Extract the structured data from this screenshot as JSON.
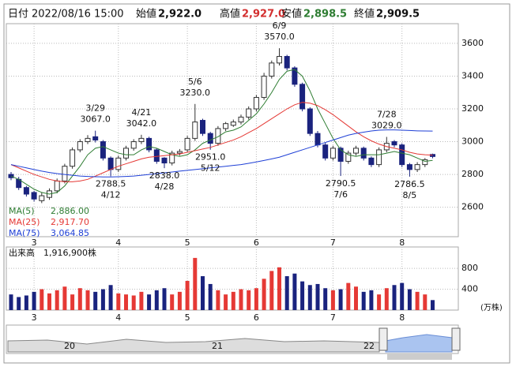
{
  "header": {
    "date_label": "日付",
    "date": "2022/08/16 15:00",
    "open_label": "始値",
    "open": "2,922.0",
    "high_label": "高値",
    "high": "2,927.0",
    "low_label": "安値",
    "low": "2,898.5",
    "close_label": "終値",
    "close": "2,909.5"
  },
  "chart_data": [
    {
      "type": "candlestick",
      "categories": [
        null,
        null,
        null,
        "3",
        null,
        null,
        null,
        null,
        null,
        null,
        null,
        null,
        null,
        null,
        "4",
        null,
        null,
        null,
        null,
        null,
        null,
        null,
        null,
        "5",
        null,
        null,
        null,
        null,
        null,
        null,
        null,
        null,
        "6",
        null,
        null,
        null,
        null,
        null,
        null,
        null,
        null,
        null,
        "7",
        null,
        null,
        null,
        null,
        null,
        null,
        null,
        null,
        "8",
        null,
        null,
        null,
        null
      ],
      "open": [
        2800,
        2770,
        2720,
        2690,
        2640,
        2660,
        2700,
        2760,
        2850,
        2950,
        3000,
        3030,
        3000,
        2900,
        2830,
        2900,
        2960,
        3000,
        3020,
        2950,
        2900,
        2870,
        2930,
        2950,
        3020,
        3130,
        3050,
        2990,
        3080,
        3100,
        3120,
        3150,
        3200,
        3270,
        3400,
        3480,
        3520,
        3450,
        3350,
        3200,
        3050,
        2980,
        2900,
        2960,
        2880,
        2930,
        2960,
        2900,
        2860,
        2950,
        3000,
        2980,
        2860,
        2830,
        2860,
        2922
      ],
      "high": [
        2815,
        2785,
        2730,
        2700,
        2690,
        2715,
        2775,
        2865,
        2965,
        3015,
        3040,
        3067,
        3010,
        2910,
        2915,
        2975,
        3015,
        3042,
        3030,
        2960,
        2905,
        2945,
        2955,
        3035,
        3230,
        3140,
        3060,
        3095,
        3120,
        3135,
        3165,
        3215,
        3285,
        3420,
        3495,
        3570,
        3530,
        3460,
        3360,
        3210,
        3065,
        2995,
        2975,
        2970,
        2945,
        2975,
        2970,
        2910,
        2965,
        3029,
        3010,
        2990,
        2870,
        2875,
        2900,
        2927
      ],
      "low": [
        2765,
        2705,
        2665,
        2635,
        2625,
        2645,
        2685,
        2745,
        2835,
        2935,
        2985,
        2995,
        2885,
        2788.5,
        2815,
        2885,
        2945,
        2985,
        2935,
        2865,
        2838,
        2855,
        2915,
        2935,
        3005,
        3035,
        2951,
        2975,
        3065,
        3090,
        3105,
        3135,
        3185,
        3255,
        3385,
        3465,
        3435,
        3335,
        3185,
        3035,
        2965,
        2885,
        2885,
        2790.5,
        2865,
        2915,
        2885,
        2845,
        2845,
        2935,
        2965,
        2845,
        2786.5,
        2815,
        2845,
        2898.5
      ],
      "close": [
        2780,
        2720,
        2680,
        2650,
        2670,
        2700,
        2760,
        2850,
        2950,
        3000,
        3020,
        3010,
        2900,
        2830,
        2900,
        2960,
        3000,
        3020,
        2950,
        2880,
        2870,
        2930,
        2940,
        3020,
        3120,
        3050,
        2990,
        3080,
        3110,
        3120,
        3150,
        3200,
        3270,
        3400,
        3480,
        3520,
        3450,
        3350,
        3200,
        3050,
        2980,
        2900,
        2960,
        2880,
        2930,
        2960,
        2900,
        2860,
        2950,
        2990,
        2980,
        2860,
        2830,
        2860,
        2890,
        2909.5
      ],
      "up_color": "#ffffff",
      "down_color": "#1a237e",
      "series": [
        {
          "name": "MA(5)",
          "color": "#2e7d32",
          "latest_label": "2,886.00",
          "values": [
            2790,
            2770,
            2740,
            2710,
            2690,
            2680,
            2690,
            2730,
            2790,
            2850,
            2920,
            2960,
            2970,
            2950,
            2930,
            2920,
            2920,
            2950,
            2970,
            2960,
            2940,
            2920,
            2910,
            2920,
            2950,
            2990,
            3010,
            3030,
            3060,
            3070,
            3090,
            3130,
            3170,
            3230,
            3300,
            3380,
            3430,
            3440,
            3400,
            3310,
            3200,
            3110,
            3020,
            2950,
            2920,
            2910,
            2920,
            2920,
            2920,
            2930,
            2940,
            2930,
            2920,
            2900,
            2880,
            2886
          ]
        },
        {
          "name": "MA(25)",
          "color": "#e53935",
          "latest_label": "2,917.70",
          "values": [
            2860,
            2840,
            2820,
            2800,
            2785,
            2770,
            2760,
            2755,
            2755,
            2760,
            2770,
            2790,
            2810,
            2830,
            2850,
            2865,
            2880,
            2895,
            2905,
            2910,
            2915,
            2920,
            2925,
            2935,
            2945,
            2955,
            2965,
            2980,
            2995,
            3010,
            3030,
            3055,
            3080,
            3110,
            3140,
            3170,
            3200,
            3225,
            3240,
            3235,
            3220,
            3195,
            3165,
            3130,
            3095,
            3060,
            3030,
            3005,
            2985,
            2970,
            2960,
            2950,
            2935,
            2925,
            2920,
            2917.7
          ]
        },
        {
          "name": "MA(75)",
          "color": "#1e3fd6",
          "latest_label": "3,064.85",
          "values": [
            2860,
            2850,
            2840,
            2830,
            2820,
            2812,
            2805,
            2800,
            2795,
            2790,
            2788,
            2786,
            2785,
            2785,
            2786,
            2788,
            2790,
            2795,
            2800,
            2805,
            2810,
            2815,
            2820,
            2825,
            2830,
            2835,
            2840,
            2845,
            2850,
            2855,
            2860,
            2868,
            2876,
            2885,
            2895,
            2905,
            2920,
            2935,
            2950,
            2965,
            2980,
            2995,
            3010,
            3025,
            3040,
            3050,
            3058,
            3065,
            3070,
            3072,
            3072,
            3070,
            3068,
            3066,
            3065,
            3064.85
          ]
        }
      ],
      "annotations": [
        {
          "date": "3/29",
          "value": 3067,
          "label": "3067.0"
        },
        {
          "date": "4/12",
          "value": 2788.5,
          "label": "2788.5"
        },
        {
          "date": "4/21",
          "value": 3042,
          "label": "3042.0"
        },
        {
          "date": "4/28",
          "value": 2838,
          "label": "2838.0"
        },
        {
          "date": "5/6",
          "value": 3230,
          "label": "3230.0"
        },
        {
          "date": "5/12",
          "value": 2951,
          "label": "2951.0"
        },
        {
          "date": "6/9",
          "value": 3570,
          "label": "3570.0"
        },
        {
          "date": "7/6",
          "value": 2790.5,
          "label": "2790.5"
        },
        {
          "date": "7/28",
          "value": 3029,
          "label": "3029.0"
        },
        {
          "date": "8/5",
          "value": 2786.5,
          "label": "2786.5"
        }
      ],
      "ylim": [
        2420,
        3720
      ],
      "yticks": [
        2600,
        2800,
        3000,
        3200,
        3400,
        3600
      ],
      "grid": true
    },
    {
      "type": "volume",
      "title": "出来高　1,916,900株",
      "unit": "(万株)",
      "up_color": "#e53935",
      "down_color": "#1a237e",
      "values": [
        300,
        250,
        280,
        350,
        400,
        320,
        380,
        450,
        300,
        420,
        380,
        350,
        400,
        480,
        320,
        300,
        280,
        350,
        300,
        380,
        420,
        300,
        350,
        560,
        1000,
        650,
        500,
        380,
        300,
        350,
        400,
        380,
        420,
        600,
        750,
        820,
        650,
        700,
        550,
        480,
        500,
        420,
        380,
        400,
        520,
        450,
        350,
        380,
        300,
        420,
        480,
        520,
        400,
        350,
        300,
        191.69
      ],
      "ylim": [
        0,
        1210
      ],
      "yticks": [
        400,
        800
      ],
      "grid": true
    }
  ],
  "navigator": {
    "labels": [
      "20",
      "21",
      "22"
    ]
  }
}
